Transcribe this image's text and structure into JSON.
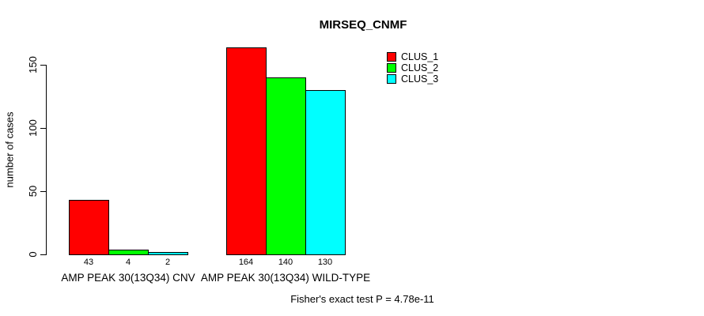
{
  "title": "MIRSEQ_CNMF",
  "footer": "Fisher's exact test P = 4.78e-11",
  "legend": {
    "position": "top-right",
    "items": [
      {
        "label": "CLUS_1",
        "color": "#FF0000"
      },
      {
        "label": "CLUS_2",
        "color": "#00FF00"
      },
      {
        "label": "CLUS_3",
        "color": "#00FFFF"
      }
    ]
  },
  "chart_data": {
    "type": "bar",
    "title": "MIRSEQ_CNMF",
    "xlabel": "",
    "ylabel": "number of cases",
    "categories": [
      "AMP PEAK 30(13Q34) CNV",
      "AMP PEAK 30(13Q34) WILD-TYPE"
    ],
    "series": [
      {
        "name": "CLUS_1",
        "color": "#FF0000",
        "values": [
          43,
          164
        ]
      },
      {
        "name": "CLUS_2",
        "color": "#00FF00",
        "values": [
          4,
          140
        ]
      },
      {
        "name": "CLUS_3",
        "color": "#00FFFF",
        "values": [
          2,
          130
        ]
      }
    ],
    "bar_value_labels": [
      [
        "43",
        "4",
        "2"
      ],
      [
        "164",
        "140",
        "130"
      ]
    ],
    "yticks": [
      0,
      50,
      100,
      150
    ],
    "ylim": [
      0,
      170
    ],
    "grid": false,
    "legend_position": "top-right",
    "annotation": "Fisher's exact test P = 4.78e-11"
  }
}
